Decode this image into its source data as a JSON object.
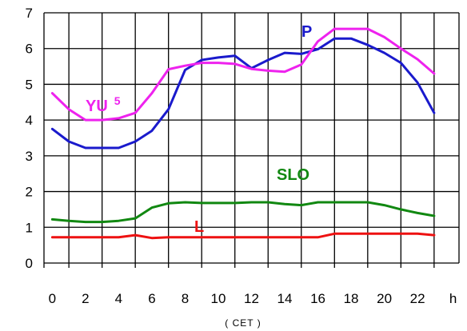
{
  "chart_data": {
    "type": "line",
    "title": "",
    "xlabel": "( CET )",
    "ylabel": "",
    "xlim": [
      -0.5,
      24.5
    ],
    "ylim": [
      0,
      7
    ],
    "x_ticks": [
      "0",
      "2",
      "4",
      "6",
      "8",
      "10",
      "12",
      "14",
      "16",
      "18",
      "20",
      "22",
      "h"
    ],
    "y_ticks": [
      "0",
      "1",
      "2",
      "3",
      "4",
      "5",
      "6",
      "7"
    ],
    "grid": true,
    "x": [
      0,
      1,
      2,
      3,
      4,
      5,
      6,
      7,
      8,
      9,
      10,
      11,
      12,
      13,
      14,
      15,
      16,
      17,
      18,
      19,
      20,
      21,
      22,
      23,
      24
    ],
    "series": [
      {
        "name": "P",
        "label_main": "P",
        "label_sup": "",
        "color": "#1a1acc",
        "values": [
          3.75,
          3.4,
          3.22,
          3.22,
          3.22,
          3.4,
          3.7,
          4.3,
          5.4,
          5.68,
          5.75,
          5.8,
          5.45,
          5.68,
          5.88,
          5.85,
          5.98,
          6.28,
          6.28,
          6.1,
          5.88,
          5.6,
          5.05,
          4.2,
          null
        ]
      },
      {
        "name": "YU 5",
        "label_main": "YU",
        "label_sup": "5",
        "color": "#ee22ee",
        "values": [
          4.75,
          4.3,
          4.0,
          4.0,
          4.05,
          4.2,
          4.75,
          5.42,
          5.52,
          5.6,
          5.6,
          5.57,
          5.43,
          5.38,
          5.35,
          5.55,
          6.2,
          6.55,
          6.55,
          6.55,
          6.32,
          6.0,
          5.7,
          5.3,
          null
        ]
      },
      {
        "name": "SLO",
        "label_main": "SLO",
        "label_sup": "",
        "color": "#118811",
        "values": [
          1.22,
          1.18,
          1.15,
          1.15,
          1.18,
          1.25,
          1.55,
          1.67,
          1.7,
          1.68,
          1.68,
          1.68,
          1.7,
          1.7,
          1.65,
          1.62,
          1.7,
          1.7,
          1.7,
          1.7,
          1.62,
          1.5,
          1.4,
          1.32,
          null
        ]
      },
      {
        "name": "L",
        "label_main": "L",
        "label_sup": "",
        "color": "#ee1111",
        "values": [
          0.72,
          0.72,
          0.72,
          0.72,
          0.72,
          0.78,
          0.7,
          0.72,
          0.72,
          0.72,
          0.72,
          0.72,
          0.72,
          0.72,
          0.72,
          0.72,
          0.72,
          0.82,
          0.82,
          0.82,
          0.82,
          0.82,
          0.82,
          0.78,
          null
        ]
      }
    ]
  }
}
